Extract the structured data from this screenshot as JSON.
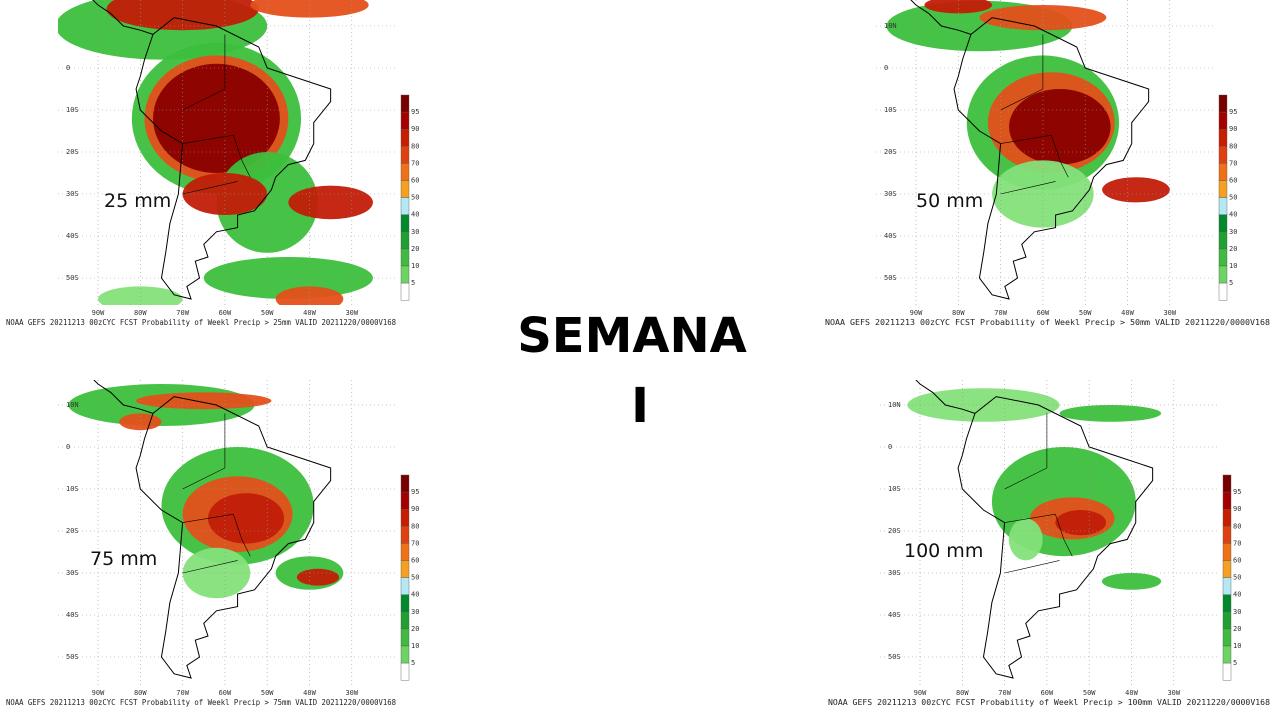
{
  "title": "SEMANA",
  "subtitle": "I",
  "panels": [
    {
      "label": "25 mm",
      "caption": "NOAA GEFS 20211213 00zCYC FCST Probability of Weekl Precip > 25mm  VALID 20211220/0000V168",
      "lat_labels": [
        "0",
        "10S",
        "20S",
        "30S",
        "40S",
        "50S"
      ],
      "lon_labels": [
        "90W",
        "80W",
        "70W",
        "60W",
        "50W",
        "40W",
        "30W"
      ],
      "colorbar_labels": [
        "95",
        "90",
        "80",
        "70",
        "60",
        "50",
        "40",
        "30",
        "20",
        "10",
        "5"
      ]
    },
    {
      "label": "50 mm",
      "caption": "NOAA GEFS 20211213 00zCYC FCST Probability of Weekl Precip > 50mm  VALID 20211220/0000V168",
      "lat_labels": [
        "10N",
        "0",
        "10S",
        "20S",
        "30S",
        "40S",
        "50S"
      ],
      "lon_labels": [
        "90W",
        "80W",
        "70W",
        "60W",
        "50W",
        "40W",
        "30W"
      ],
      "colorbar_labels": [
        "95",
        "90",
        "80",
        "70",
        "60",
        "50",
        "40",
        "30",
        "20",
        "10",
        "5"
      ]
    },
    {
      "label": "75 mm",
      "caption": "NOAA GEFS 20211213 00zCYC FCST Probability of Weekl Precip > 75mm  VALID 20211220/0000V168",
      "lat_labels": [
        "10N",
        "0",
        "10S",
        "20S",
        "30S",
        "40S",
        "50S"
      ],
      "lon_labels": [
        "90W",
        "80W",
        "70W",
        "60W",
        "50W",
        "40W",
        "30W"
      ],
      "colorbar_labels": [
        "95",
        "90",
        "80",
        "70",
        "60",
        "50",
        "40",
        "30",
        "20",
        "10",
        "5"
      ]
    },
    {
      "label": "100 mm",
      "caption": "NOAA GEFS 20211213 00zCYC FCST Probability of Weekl Precip > 100mm  VALID 20211220/0000V168",
      "lat_labels": [
        "10N",
        "0",
        "10S",
        "20S",
        "30S",
        "40S",
        "50S"
      ],
      "lon_labels": [
        "90W",
        "80W",
        "70W",
        "60W",
        "50W",
        "40W",
        "30W"
      ],
      "colorbar_labels": [
        "95",
        "90",
        "80",
        "70",
        "60",
        "50",
        "40",
        "30",
        "20",
        "10",
        "5"
      ]
    }
  ]
}
